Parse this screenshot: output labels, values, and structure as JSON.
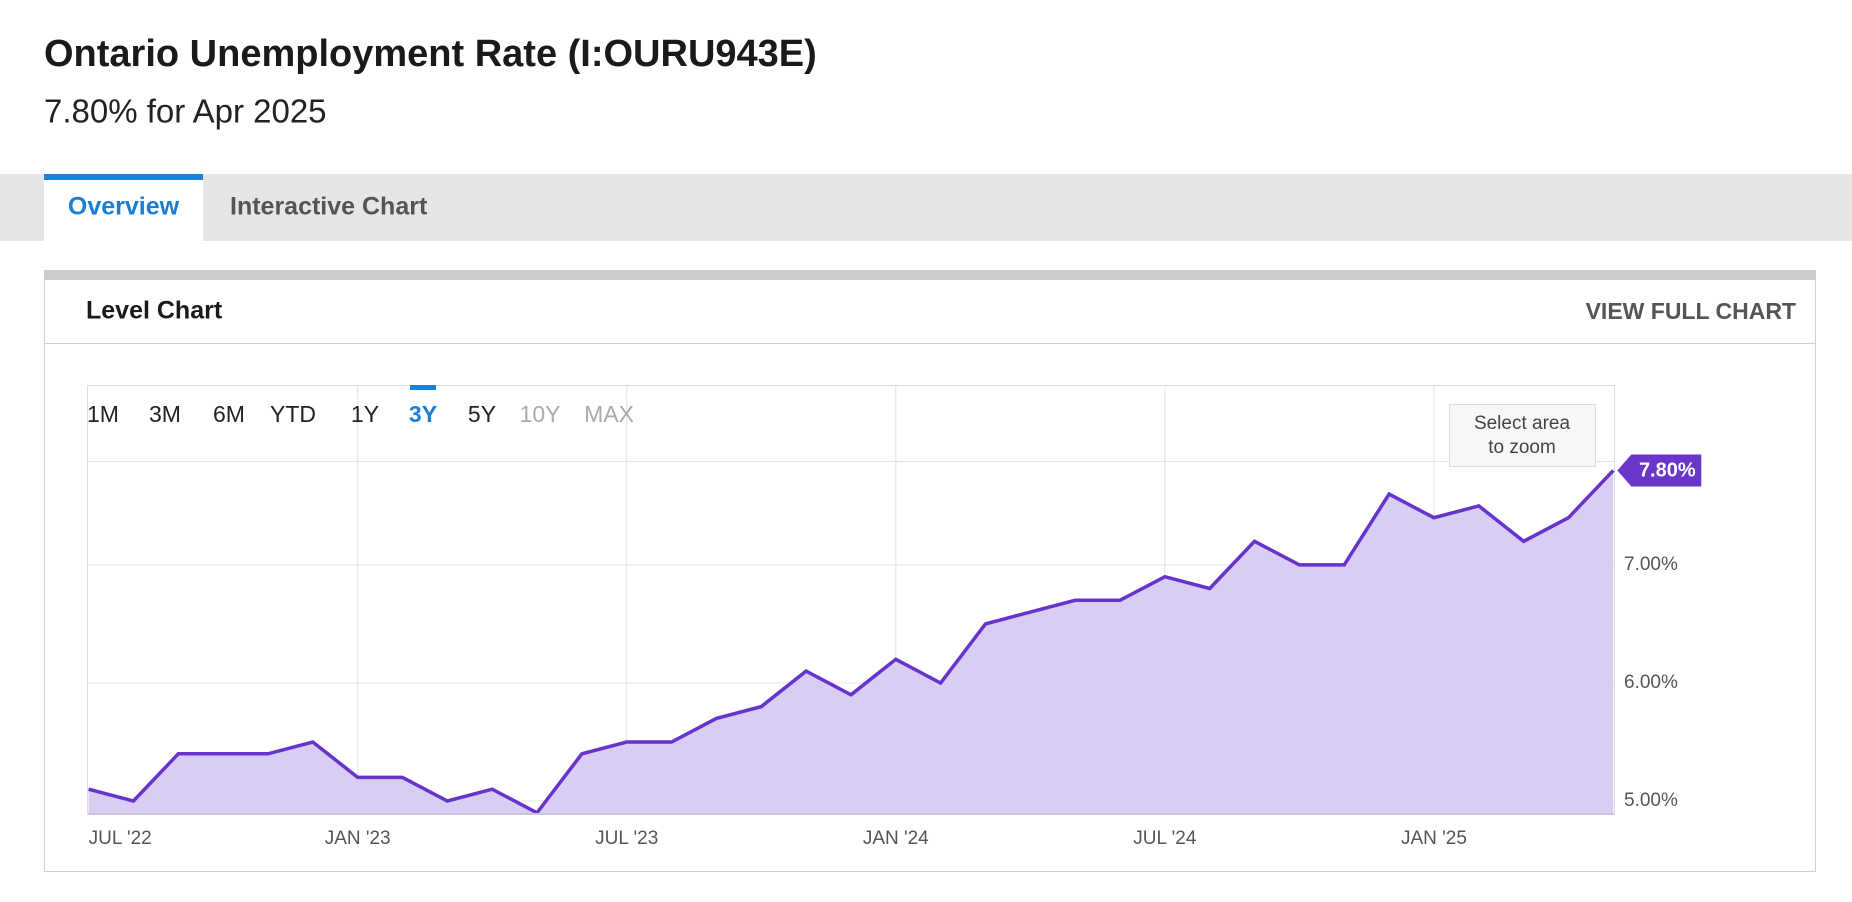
{
  "header": {
    "title": "Ontario Unemployment Rate (I:OURU943E)",
    "subtitle": "7.80% for Apr 2025"
  },
  "tabs": [
    "Overview",
    "Interactive Chart"
  ],
  "active_tab": 0,
  "panel": {
    "title": "Level Chart",
    "link": "VIEW FULL CHART"
  },
  "range_buttons": [
    "1M",
    "3M",
    "6M",
    "YTD",
    "1Y",
    "3Y",
    "5Y",
    "10Y",
    "MAX"
  ],
  "active_range_button": 5,
  "disabled_range_buttons": [
    7,
    8
  ],
  "zoom_hint": "Select area to zoom",
  "chart_data": {
    "type": "area",
    "categories": [
      "JUL '22",
      null,
      null,
      null,
      null,
      null,
      "JAN '23",
      null,
      null,
      null,
      null,
      null,
      "JUL '23",
      null,
      null,
      null,
      null,
      null,
      "JAN '24",
      null,
      null,
      null,
      null,
      null,
      "JUL '24",
      null,
      null,
      null,
      null,
      null,
      "JAN '25",
      null,
      null,
      null,
      null
    ],
    "values": [
      5.1,
      5.0,
      5.4,
      5.4,
      5.4,
      5.5,
      5.2,
      5.2,
      5.0,
      5.1,
      4.9,
      5.4,
      5.5,
      5.5,
      5.7,
      5.8,
      6.1,
      5.9,
      6.2,
      6.0,
      6.5,
      6.6,
      6.7,
      6.7,
      6.9,
      6.8,
      7.2,
      7.0,
      7.0,
      7.6,
      7.4,
      7.5,
      7.2,
      7.4,
      7.8
    ],
    "value_labels": [
      null,
      null,
      null,
      null,
      null,
      null,
      null,
      null,
      null,
      null,
      null,
      null,
      null,
      null,
      null,
      null,
      null,
      null,
      null,
      null,
      null,
      null,
      null,
      null,
      null,
      null,
      null,
      null,
      null,
      null,
      null,
      null,
      null,
      null,
      "7.80%"
    ],
    "color": "#6633cc",
    "fill": "#d9cdf3",
    "ylim": [
      4.89,
      7.88
    ],
    "yticks": [
      {
        "value": 5,
        "label": "5.00%"
      },
      {
        "value": 6,
        "label": "6.00%"
      },
      {
        "value": 7,
        "label": "7.00%"
      }
    ],
    "grid": true
  }
}
